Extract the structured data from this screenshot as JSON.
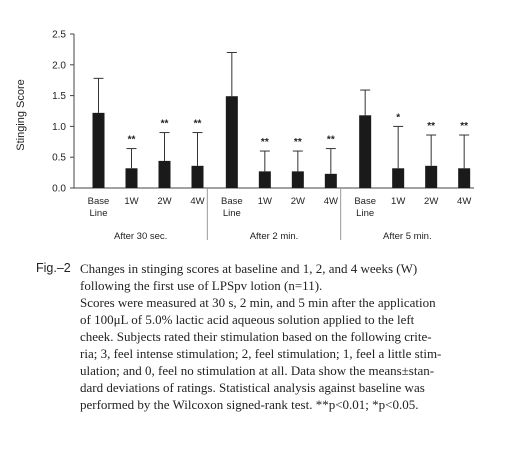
{
  "chart_data": {
    "type": "bar",
    "ylabel": "Stinging Score",
    "ylim": [
      0,
      2.5
    ],
    "yticks": [
      "0.0",
      "0.5",
      "1.0",
      "1.5",
      "2.0",
      "2.5"
    ],
    "groups": [
      {
        "label": "After 30 sec.",
        "categories": [
          "Base Line",
          "1W",
          "2W",
          "4W"
        ],
        "values": [
          1.22,
          0.32,
          0.44,
          0.36
        ],
        "errors": [
          0.56,
          0.32,
          0.46,
          0.54
        ],
        "significance": [
          "",
          "**",
          "**",
          "**"
        ]
      },
      {
        "label": "After 2 min.",
        "categories": [
          "Base Line",
          "1W",
          "2W",
          "4W"
        ],
        "values": [
          1.49,
          0.27,
          0.27,
          0.23
        ],
        "errors": [
          0.71,
          0.33,
          0.33,
          0.41
        ],
        "significance": [
          "",
          "**",
          "**",
          "**"
        ]
      },
      {
        "label": "After 5 min.",
        "categories": [
          "Base Line",
          "1W",
          "2W",
          "4W"
        ],
        "values": [
          1.18,
          0.32,
          0.36,
          0.32
        ],
        "errors": [
          0.41,
          0.68,
          0.5,
          0.54
        ],
        "significance": [
          "",
          "*",
          "**",
          "**"
        ]
      }
    ],
    "bar_color": "#1a1a1a",
    "grid": false
  },
  "caption": {
    "label": "Fig.–2",
    "lines": [
      "Changes in stinging scores at baseline and 1, 2, and 4 weeks (W)",
      "following the first use of LPSpv lotion (n=11).",
      "Scores were measured at 30 s, 2 min, and 5 min after the application",
      "of 100μL of 5.0% lactic acid aqueous solution applied to the left",
      "cheek. Subjects rated their stimulation based on the following crite-",
      "ria; 3, feel intense stimulation; 2, feel stimulation; 1, feel a little stim-",
      "ulation; and 0, feel no stimulation at all. Data show the means±stan-",
      "dard deviations of ratings. Statistical analysis against baseline was",
      "performed by the Wilcoxon signed-rank test. **p<0.01; *p<0.05."
    ]
  }
}
